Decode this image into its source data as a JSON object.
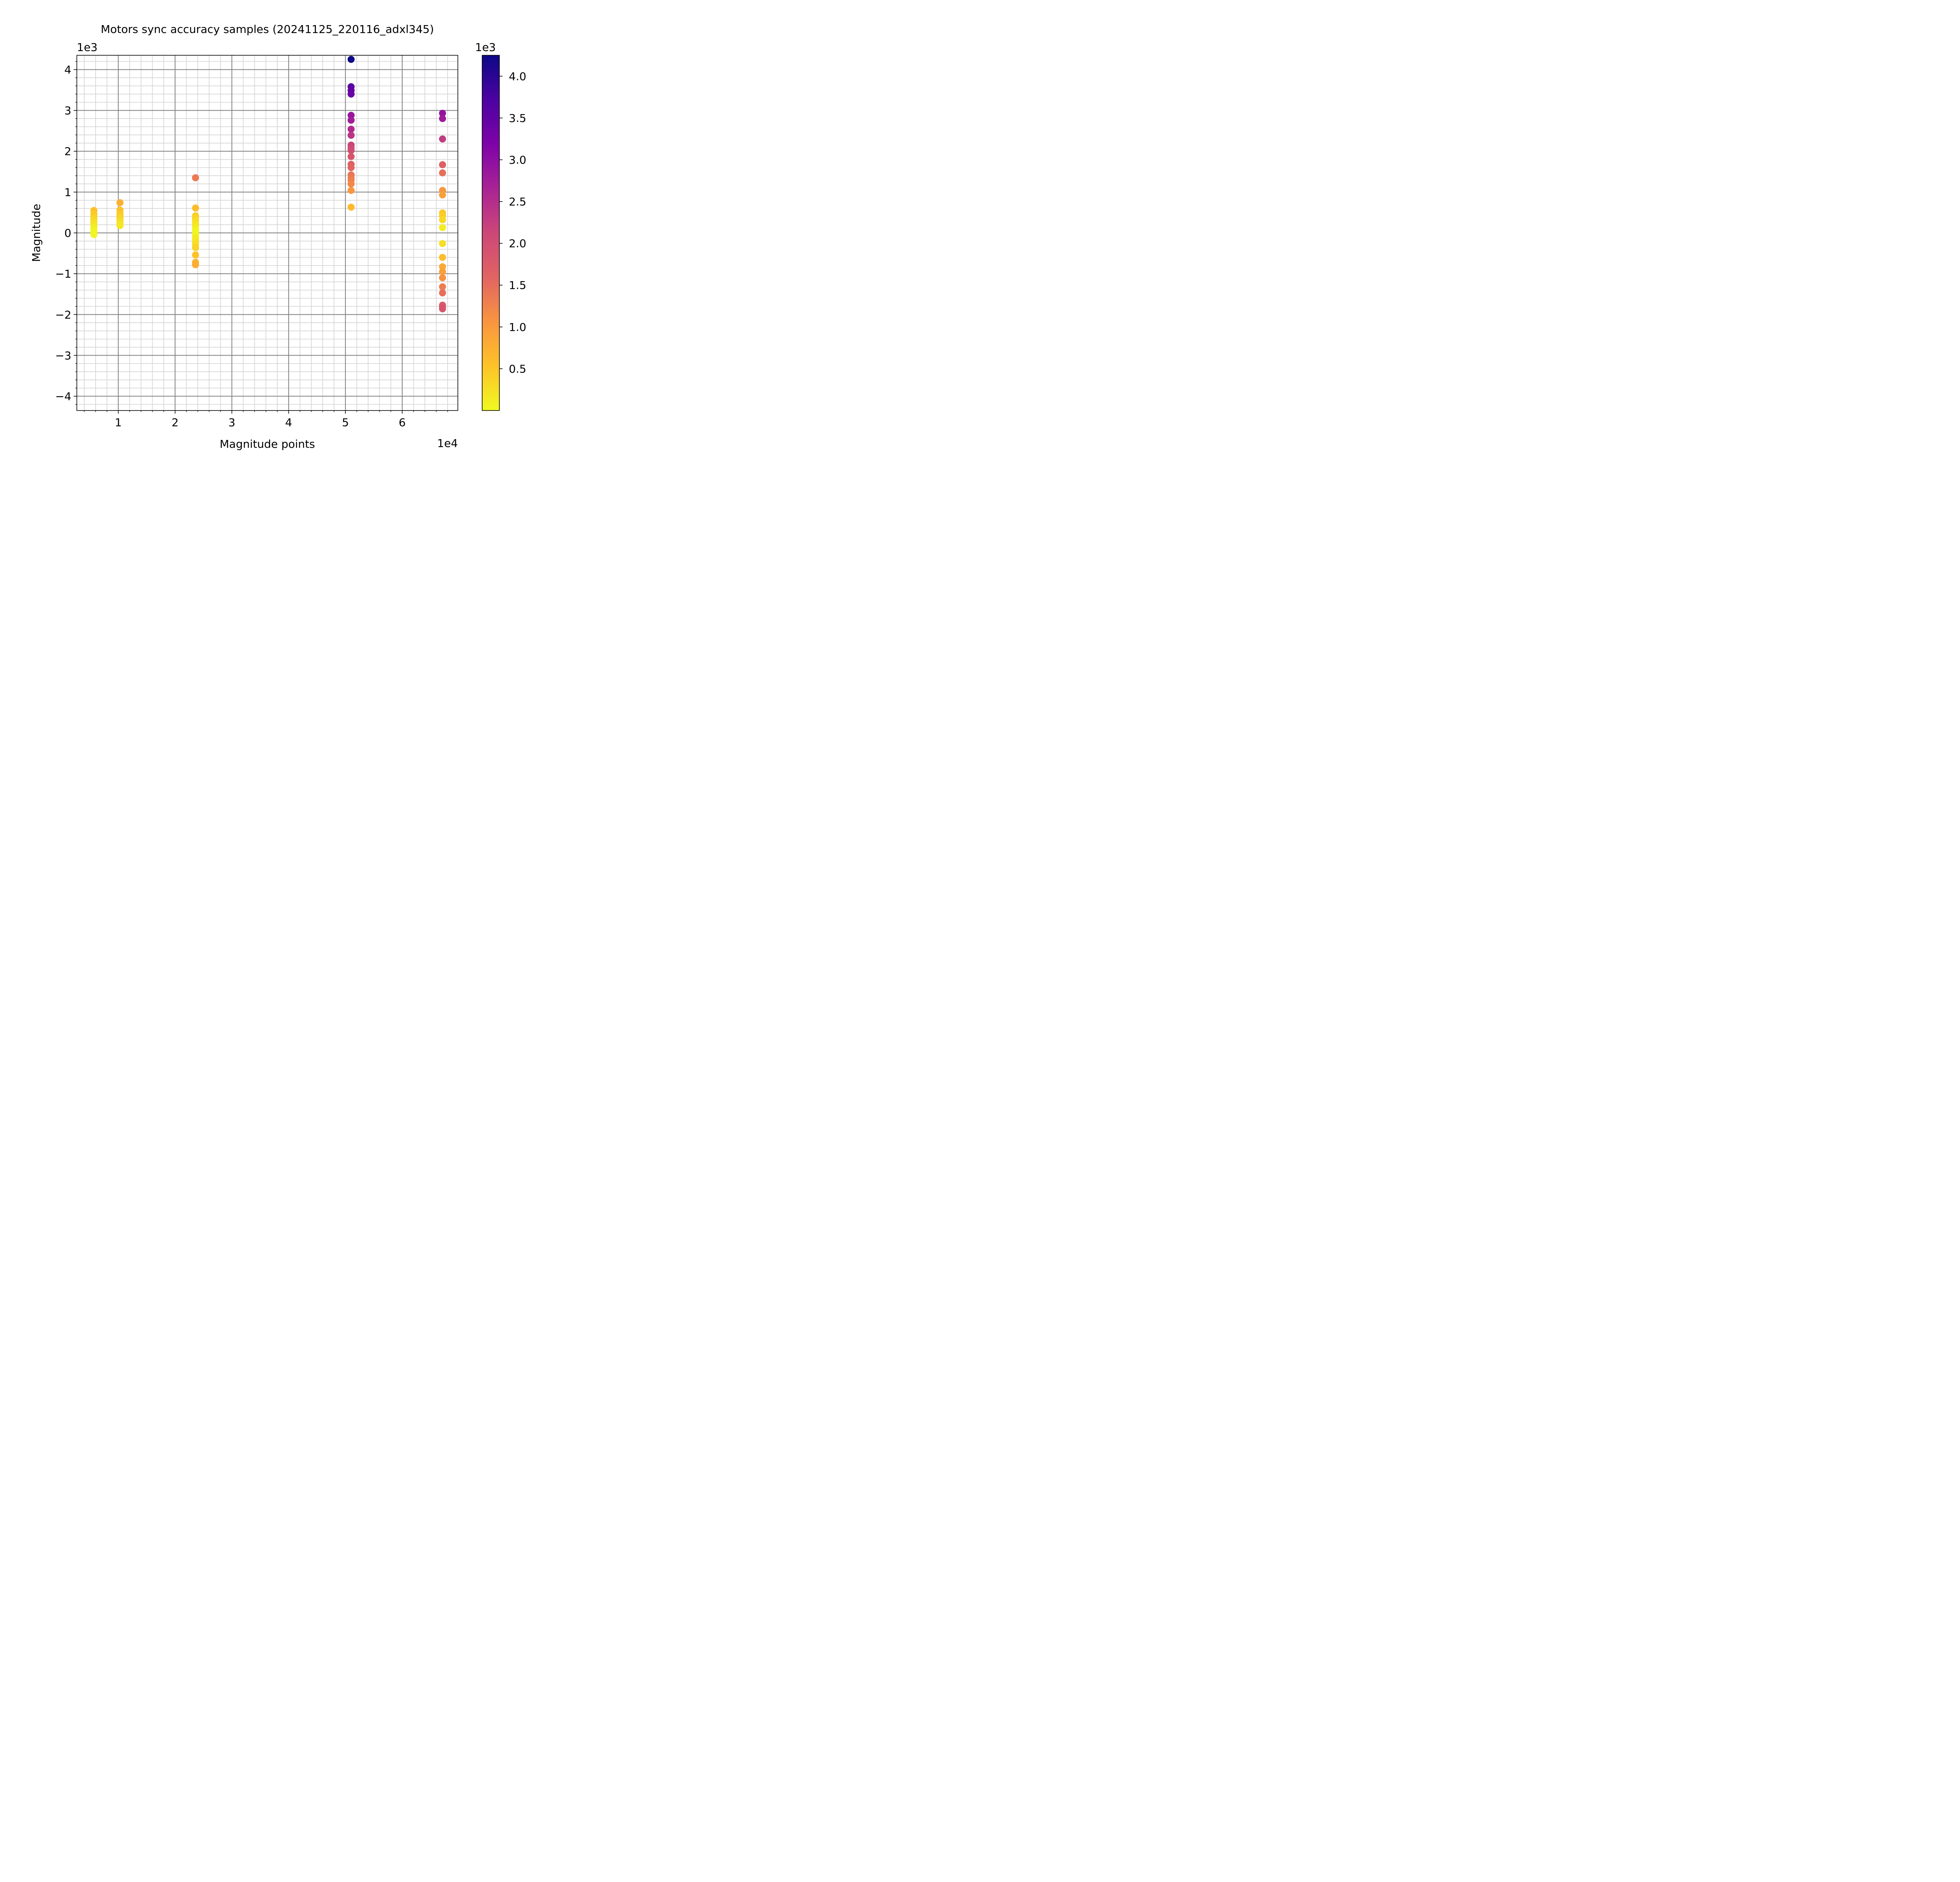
{
  "chart_data": {
    "type": "scatter",
    "title": "Motors sync accuracy samples (20241125_220116_adxl345)",
    "xlabel": "Magnitude points",
    "ylabel": "Magnitude",
    "x_offset_label": "1e4",
    "y_offset_label": "1e3",
    "xlim": [
      2700,
      69800
    ],
    "ylim": [
      -4350,
      4350
    ],
    "x_ticks": [
      10000,
      20000,
      30000,
      40000,
      50000,
      60000
    ],
    "x_tick_labels": [
      "1",
      "2",
      "3",
      "4",
      "5",
      "6"
    ],
    "y_ticks": [
      -4000,
      -3000,
      -2000,
      -1000,
      0,
      1000,
      2000,
      3000,
      4000
    ],
    "y_tick_labels": [
      "−4",
      "−3",
      "−2",
      "−1",
      "0",
      "1",
      "2",
      "3",
      "4"
    ],
    "grid": true,
    "minor_grid": true,
    "colormap": "plasma",
    "colorbar": {
      "label_offset": "1e3",
      "range": [
        0,
        4250
      ],
      "ticks": [
        500,
        1000,
        1500,
        2000,
        2500,
        3000,
        3500,
        4000
      ],
      "tick_labels": [
        "0.5",
        "1.0",
        "1.5",
        "2.0",
        "2.5",
        "3.0",
        "3.5",
        "4.0"
      ]
    },
    "series": [
      {
        "x": 5700,
        "y": [
          550,
          470,
          400,
          340,
          280,
          220,
          170,
          120,
          70,
          20,
          -40
        ]
      },
      {
        "x": 10300,
        "y": [
          740,
          560,
          480,
          420,
          370,
          330,
          280,
          220,
          180
        ]
      },
      {
        "x": 23600,
        "y": [
          1350,
          610,
          420,
          360,
          300,
          230,
          170,
          90,
          20,
          -40,
          -100,
          -160,
          -230,
          -280,
          -360,
          -540,
          -720,
          -780
        ]
      },
      {
        "x": 51000,
        "y": [
          4250,
          3580,
          3490,
          3400,
          2880,
          2760,
          2540,
          2390,
          2150,
          2080,
          2020,
          1870,
          1680,
          1600,
          1420,
          1350,
          1290,
          1200,
          1040,
          630
        ]
      },
      {
        "x": 67100,
        "y": [
          2930,
          2800,
          2300,
          1670,
          1470,
          1040,
          930,
          490,
          420,
          320,
          130,
          -260,
          -600,
          -830,
          -950,
          -1100,
          -1320,
          -1470,
          -1770,
          -1810,
          -1860
        ]
      }
    ]
  }
}
